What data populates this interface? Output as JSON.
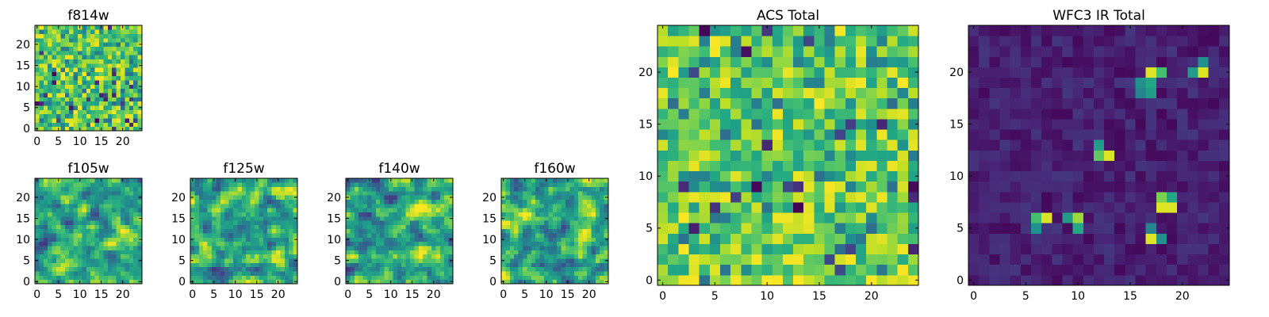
{
  "chart_data": [
    {
      "type": "heatmap",
      "title": "f814w",
      "xlabel": "",
      "ylabel": "",
      "xlim": [
        0,
        25
      ],
      "ylim": [
        0,
        25
      ],
      "xticks": [
        0,
        5,
        10,
        15,
        20
      ],
      "yticks": [
        0,
        5,
        10,
        15,
        20
      ],
      "colormap": "viridis",
      "grid": false,
      "seed": 814,
      "values_pattern": "uniform-noise 25x25, mostly green-yellow with sparse dark pixels"
    },
    {
      "type": "heatmap",
      "title": "f105w",
      "xlim": [
        0,
        25
      ],
      "ylim": [
        0,
        25
      ],
      "xticks": [
        0,
        5,
        10,
        15,
        20
      ],
      "yticks": [
        0,
        5,
        10,
        15,
        20
      ],
      "colormap": "viridis",
      "seed": 105,
      "values_pattern": "smoothed noise 25x25"
    },
    {
      "type": "heatmap",
      "title": "f125w",
      "xlim": [
        0,
        25
      ],
      "ylim": [
        0,
        25
      ],
      "xticks": [
        0,
        5,
        10,
        15,
        20
      ],
      "yticks": [
        0,
        5,
        10,
        15,
        20
      ],
      "colormap": "viridis",
      "seed": 125,
      "values_pattern": "smoothed noise 25x25"
    },
    {
      "type": "heatmap",
      "title": "f140w",
      "xlim": [
        0,
        25
      ],
      "ylim": [
        0,
        25
      ],
      "xticks": [
        0,
        5,
        10,
        15,
        20
      ],
      "yticks": [
        0,
        5,
        10,
        15,
        20
      ],
      "colormap": "viridis",
      "seed": 140,
      "values_pattern": "smoothed noise 25x25"
    },
    {
      "type": "heatmap",
      "title": "f160w",
      "xlim": [
        0,
        25
      ],
      "ylim": [
        0,
        25
      ],
      "xticks": [
        0,
        5,
        10,
        15,
        20
      ],
      "yticks": [
        0,
        5,
        10,
        15,
        20
      ],
      "colormap": "viridis",
      "seed": 160,
      "values_pattern": "smoothed noise 25x25"
    },
    {
      "type": "heatmap",
      "title": "ACS Total",
      "xlim": [
        0,
        25
      ],
      "ylim": [
        0,
        25
      ],
      "xticks": [
        0,
        5,
        10,
        15,
        20
      ],
      "yticks": [
        0,
        5,
        10,
        15,
        20
      ],
      "colormap": "viridis",
      "seed": 999,
      "values_pattern": "uniform-noise 25x25, mostly green-yellow with sparse dark pixels"
    },
    {
      "type": "heatmap",
      "title": "WFC3 IR Total",
      "xlim": [
        0,
        25
      ],
      "ylim": [
        0,
        25
      ],
      "xticks": [
        0,
        5,
        10,
        15,
        20
      ],
      "yticks": [
        0,
        5,
        10,
        15,
        20
      ],
      "colormap": "viridis",
      "seed": 3,
      "values_pattern": "low dark-purple background with bright sources",
      "bright_sources": [
        {
          "x": 17,
          "y": 20,
          "value": 0.95
        },
        {
          "x": 18,
          "y": 20,
          "value": 0.7
        },
        {
          "x": 17,
          "y": 19,
          "value": 0.6
        },
        {
          "x": 17,
          "y": 18,
          "value": 0.55
        },
        {
          "x": 16,
          "y": 18,
          "value": 0.45
        },
        {
          "x": 16,
          "y": 19,
          "value": 0.5
        },
        {
          "x": 22,
          "y": 20,
          "value": 0.95
        },
        {
          "x": 21,
          "y": 20,
          "value": 0.55
        },
        {
          "x": 22,
          "y": 21,
          "value": 0.5
        },
        {
          "x": 12,
          "y": 13,
          "value": 0.55
        },
        {
          "x": 12,
          "y": 12,
          "value": 0.75
        },
        {
          "x": 13,
          "y": 12,
          "value": 0.95
        },
        {
          "x": 18,
          "y": 8,
          "value": 0.8
        },
        {
          "x": 19,
          "y": 8,
          "value": 0.6
        },
        {
          "x": 18,
          "y": 7,
          "value": 0.95
        },
        {
          "x": 19,
          "y": 7,
          "value": 0.95
        },
        {
          "x": 6,
          "y": 6,
          "value": 0.7
        },
        {
          "x": 7,
          "y": 6,
          "value": 0.95
        },
        {
          "x": 6,
          "y": 5,
          "value": 0.5
        },
        {
          "x": 9,
          "y": 6,
          "value": 0.55
        },
        {
          "x": 10,
          "y": 6,
          "value": 0.85
        },
        {
          "x": 10,
          "y": 5,
          "value": 0.6
        },
        {
          "x": 17,
          "y": 4,
          "value": 0.95
        },
        {
          "x": 18,
          "y": 4,
          "value": 0.5
        },
        {
          "x": 17,
          "y": 5,
          "value": 0.45
        }
      ]
    }
  ]
}
